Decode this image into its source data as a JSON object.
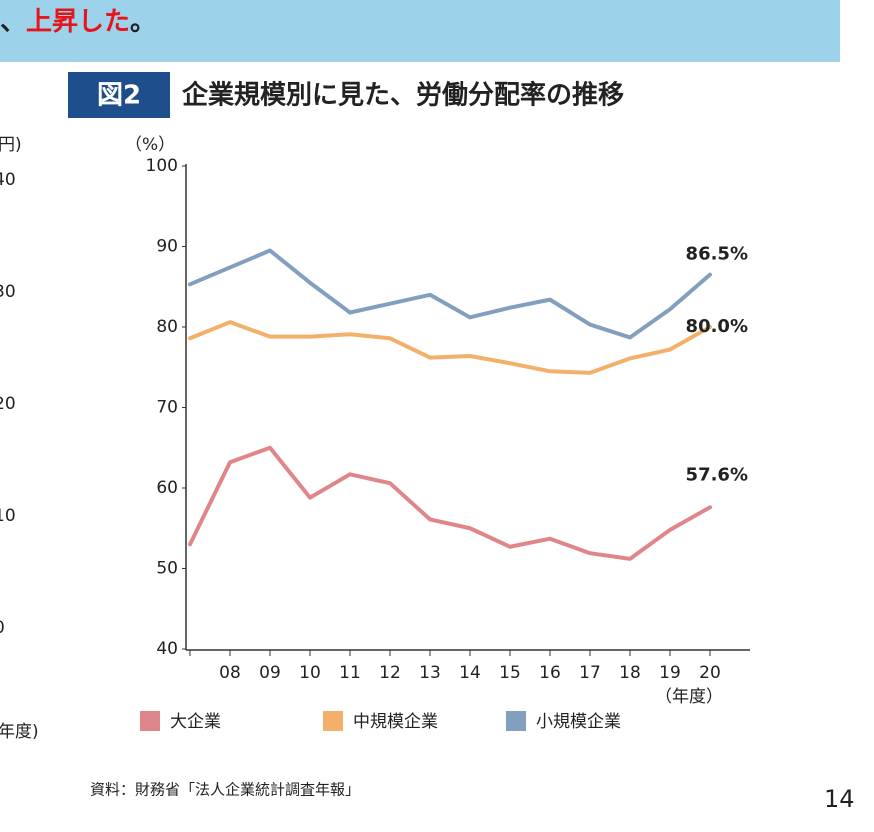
{
  "banner": {
    "parts": [
      "、",
      "上昇した",
      "。"
    ]
  },
  "left_fragment": {
    "unit": "円)",
    "ticks": [
      "40",
      "30",
      "20",
      "10",
      "0"
    ],
    "x_label": "年度)"
  },
  "chart_data": {
    "type": "line",
    "badge": "図2",
    "title": "企業規模別に見た、労働分配率の推移",
    "y_label": "（%）",
    "x_label": "（年度）",
    "categories": [
      null,
      "08",
      "09",
      "10",
      "11",
      "12",
      "13",
      "14",
      "15",
      "16",
      "17",
      "18",
      "19",
      "20"
    ],
    "ylim": [
      40,
      100
    ],
    "yticks": [
      40,
      50,
      60,
      70,
      80,
      90,
      100
    ],
    "series": [
      {
        "name": "大企業",
        "color": "#e0868a",
        "values": [
          53.0,
          63.2,
          65.0,
          58.8,
          61.7,
          60.6,
          56.1,
          55.0,
          52.7,
          53.7,
          51.9,
          51.2,
          54.8,
          57.6
        ],
        "value_labels": [
          null,
          null,
          null,
          null,
          null,
          null,
          null,
          null,
          null,
          null,
          null,
          null,
          null,
          "57.6%"
        ]
      },
      {
        "name": "中規模企業",
        "color": "#f2b06a",
        "values": [
          78.6,
          80.6,
          78.8,
          78.8,
          79.1,
          78.6,
          76.2,
          76.4,
          75.5,
          74.5,
          74.3,
          76.1,
          77.2,
          80.0
        ],
        "value_labels": [
          null,
          null,
          null,
          null,
          null,
          null,
          null,
          null,
          null,
          null,
          null,
          null,
          null,
          "80.0%"
        ]
      },
      {
        "name": "小規模企業",
        "color": "#829fbd",
        "values": [
          85.3,
          87.4,
          89.5,
          85.5,
          81.8,
          82.9,
          84.0,
          81.2,
          82.4,
          83.4,
          80.3,
          78.7,
          82.2,
          86.5
        ],
        "value_labels": [
          null,
          null,
          null,
          null,
          null,
          null,
          null,
          null,
          null,
          null,
          null,
          null,
          null,
          "86.5%"
        ]
      }
    ]
  },
  "source": "資料：財務省「法人企業統計調査年報」",
  "page_number": "14"
}
